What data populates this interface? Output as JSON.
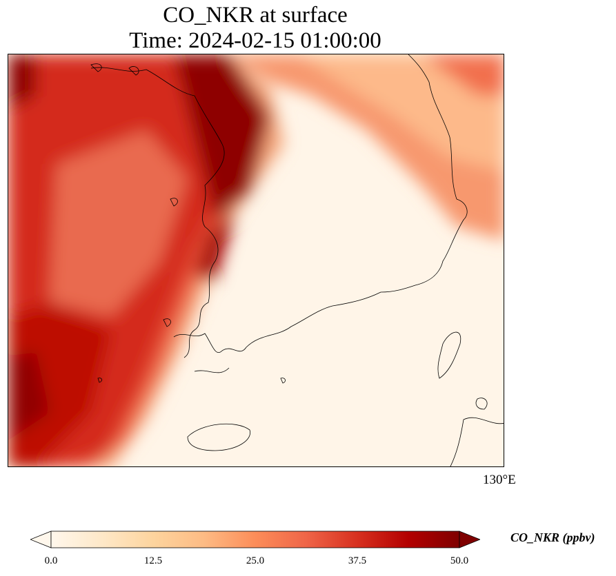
{
  "title": {
    "line1": "CO_NKR at surface",
    "line2": "Time: 2024-02-15 01:00:00"
  },
  "map": {
    "longitude_label": "130°E",
    "region": "Korean Peninsula",
    "field_pattern": "high concentration plume over the west (Yellow Sea) and northeast, near-zero over southern peninsula and East Sea south",
    "coastline_color": "#000000"
  },
  "colorbar": {
    "label": "CO_NKR (ppbv)",
    "colormap": "OrRd",
    "extend": "both",
    "min": 0.0,
    "max": 50.0,
    "ticks": [
      "0.0",
      "12.5",
      "25.0",
      "37.5",
      "50.0"
    ],
    "tick_values": [
      0.0,
      12.5,
      25.0,
      37.5,
      50.0
    ],
    "colors": [
      "#fff7ec",
      "#fee8c8",
      "#fdd49e",
      "#fdbb84",
      "#fc8d59",
      "#ef6548",
      "#d7301f",
      "#b30000",
      "#7f0000"
    ]
  }
}
